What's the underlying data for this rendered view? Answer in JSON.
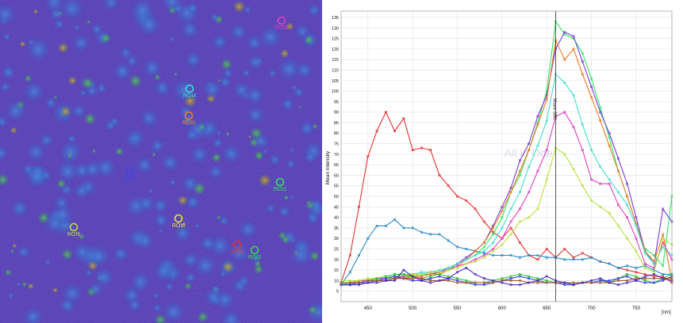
{
  "image_panel": {
    "background": "#4a33a8",
    "rois": [
      {
        "label": "ROI4",
        "color": "#3fe0d0"
      },
      {
        "label": "ROI6",
        "color": "#f07a1e"
      },
      {
        "label": "ROI1",
        "color": "#2ee860"
      },
      {
        "label": "ROI7",
        "color": "#3b46e8"
      },
      {
        "label": "ROI6",
        "color": "#e8e832"
      },
      {
        "label": "ROI5",
        "color": "#b8e040"
      },
      {
        "label": "ROI5",
        "color": "#e83030"
      },
      {
        "label": "ROI3",
        "color": "#30e040"
      },
      {
        "label": "ROI2",
        "color": "#e040c0"
      }
    ]
  },
  "chart_data": {
    "type": "line",
    "title": "",
    "watermark": "All in One",
    "ylabel": "Mean Intensity",
    "xunit": "[nm]",
    "xlim": [
      420,
      790
    ],
    "ylim": [
      0,
      138
    ],
    "yticks": [
      5,
      10,
      15,
      20,
      25,
      30,
      35,
      40,
      45,
      50,
      55,
      60,
      65,
      70,
      75,
      80,
      85,
      90,
      95,
      100,
      105,
      110,
      115,
      120,
      125,
      130,
      135
    ],
    "xticks": [
      450,
      500,
      550,
      600,
      650,
      700,
      750
    ],
    "cursor": {
      "x": 660,
      "label": "Wave 660"
    },
    "x": [
      420,
      430,
      440,
      450,
      460,
      470,
      480,
      490,
      500,
      510,
      520,
      530,
      540,
      550,
      560,
      570,
      580,
      590,
      600,
      610,
      620,
      630,
      640,
      650,
      660,
      670,
      680,
      690,
      700,
      710,
      720,
      730,
      740,
      750,
      760,
      770,
      780,
      790
    ],
    "series": [
      {
        "color": "#e83030",
        "values": [
          9,
          22,
          45,
          69,
          81,
          90,
          81,
          87,
          72,
          73,
          72,
          60,
          55,
          50,
          48,
          44,
          38,
          33,
          30,
          35,
          28,
          22,
          20,
          25,
          21,
          25,
          21,
          23,
          21,
          19,
          18,
          16,
          15,
          14,
          13,
          12,
          12,
          9
        ]
      },
      {
        "color": "#2a88c8",
        "values": [
          8,
          14,
          22,
          30,
          36,
          36,
          39,
          35,
          35,
          33,
          32,
          32,
          29,
          26,
          25,
          24,
          23,
          22,
          22,
          22,
          21,
          22,
          22,
          21,
          21,
          20,
          20,
          20,
          21,
          19,
          18,
          16,
          17,
          16,
          17,
          15,
          13,
          13
        ]
      },
      {
        "color": "#2ee860",
        "values": [
          8,
          9,
          9,
          10,
          10,
          11,
          11,
          12,
          12,
          13,
          13,
          14,
          15,
          18,
          20,
          22,
          26,
          32,
          40,
          52,
          60,
          72,
          85,
          100,
          133,
          127,
          125,
          118,
          106,
          92,
          78,
          62,
          50,
          37,
          25,
          22,
          17,
          50
        ]
      },
      {
        "color": "#7a3ae0",
        "values": [
          8,
          8,
          9,
          9,
          10,
          10,
          11,
          11,
          12,
          12,
          13,
          14,
          16,
          18,
          21,
          24,
          28,
          36,
          45,
          54,
          67,
          75,
          88,
          98,
          120,
          128,
          126,
          114,
          102,
          90,
          80,
          68,
          56,
          40,
          24,
          18,
          44,
          38
        ]
      },
      {
        "color": "#f07a1e",
        "values": [
          8,
          8,
          9,
          9,
          10,
          10,
          11,
          11,
          12,
          12,
          13,
          13,
          15,
          17,
          20,
          24,
          28,
          35,
          43,
          52,
          62,
          72,
          84,
          96,
          124,
          115,
          120,
          108,
          97,
          86,
          74,
          62,
          50,
          37,
          24,
          19,
          32,
          10
        ]
      },
      {
        "color": "#3fe0d0",
        "values": [
          8,
          9,
          9,
          10,
          10,
          11,
          12,
          13,
          13,
          14,
          14,
          15,
          16,
          18,
          20,
          22,
          24,
          28,
          35,
          44,
          52,
          64,
          74,
          86,
          108,
          104,
          98,
          84,
          72,
          64,
          58,
          52,
          46,
          36,
          23,
          18,
          26,
          22
        ]
      },
      {
        "color": "#e040c0",
        "values": [
          9,
          9,
          10,
          10,
          11,
          11,
          12,
          12,
          13,
          13,
          14,
          14,
          15,
          17,
          18,
          20,
          22,
          25,
          30,
          38,
          44,
          52,
          62,
          72,
          88,
          90,
          83,
          72,
          58,
          56,
          56,
          46,
          40,
          30,
          18,
          16,
          28,
          20
        ]
      },
      {
        "color": "#b8e040",
        "values": [
          10,
          10,
          10,
          11,
          11,
          12,
          12,
          13,
          13,
          13,
          14,
          14,
          15,
          16,
          18,
          19,
          21,
          24,
          27,
          32,
          38,
          40,
          44,
          58,
          73,
          70,
          63,
          55,
          48,
          45,
          42,
          36,
          30,
          24,
          16,
          14,
          30,
          27
        ]
      },
      {
        "color": "#30c030",
        "values": [
          8,
          9,
          9,
          10,
          11,
          12,
          13,
          13,
          12,
          11,
          12,
          13,
          12,
          11,
          10,
          9,
          9,
          10,
          11,
          12,
          13,
          12,
          11,
          10,
          9,
          9,
          8,
          9,
          9,
          10,
          9,
          11,
          13,
          12,
          10,
          9,
          11,
          13
        ]
      },
      {
        "color": "#3b46e8",
        "values": [
          8,
          8,
          9,
          9,
          10,
          11,
          12,
          11,
          10,
          10,
          11,
          12,
          11,
          10,
          9,
          8,
          8,
          9,
          10,
          11,
          12,
          11,
          10,
          9,
          9,
          8,
          8,
          9,
          9,
          10,
          10,
          11,
          12,
          10,
          9,
          9,
          10,
          12
        ]
      },
      {
        "color": "#a05a30",
        "values": [
          9,
          9,
          9,
          10,
          10,
          10,
          11,
          11,
          11,
          11,
          10,
          10,
          10,
          9,
          9,
          9,
          9,
          9,
          10,
          10,
          10,
          9,
          9,
          9,
          9,
          9,
          9,
          9,
          9,
          9,
          9,
          10,
          10,
          11,
          11,
          11,
          11,
          11
        ]
      },
      {
        "color": "#4a30b8",
        "values": [
          8,
          8,
          8,
          9,
          9,
          10,
          10,
          15,
          12,
          10,
          9,
          10,
          11,
          14,
          16,
          13,
          11,
          10,
          9,
          8,
          8,
          9,
          10,
          12,
          10,
          9,
          8,
          9,
          10,
          11,
          9,
          8,
          9,
          10,
          12,
          13,
          11,
          10
        ]
      }
    ]
  }
}
